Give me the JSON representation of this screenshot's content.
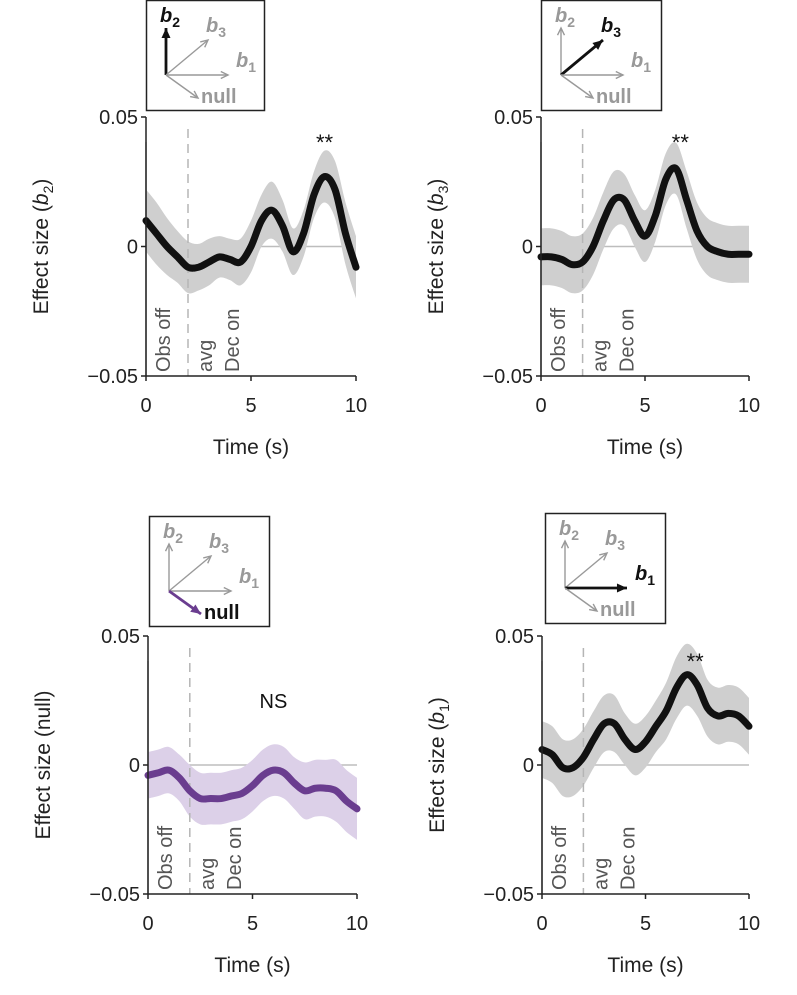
{
  "colors": {
    "black": "#111111",
    "purple": "#6a3d8f",
    "purple_band": "#dcd0e8",
    "gray_band": "#cfcfcf",
    "gray_text": "#999999",
    "marker": "#b5b5b5",
    "axis": "#222222"
  },
  "chart_data": [
    {
      "type": "line",
      "ylabel_main": "Effect size (",
      "ylabel_var": "b",
      "ylabel_sub": "2",
      "ylabel_end": ")",
      "xlabel": "Time (s)",
      "x_ticks": [
        "0",
        "5",
        "10"
      ],
      "y_ticks": [
        "0.05",
        "0",
        "−0.05"
      ],
      "xlim": [
        0,
        10
      ],
      "ylim": [
        -0.05,
        0.05
      ],
      "significance": "**",
      "significance_x": 8.5,
      "event_labels": [
        "Obs off",
        "avg",
        "Dec on"
      ],
      "event_times": [
        2
      ],
      "series": [
        {
          "name": "b2",
          "color_key": "black",
          "band_key": "gray_band",
          "x": [
            0,
            0.5,
            1,
            1.5,
            2,
            2.5,
            3,
            3.5,
            4,
            4.5,
            5,
            5.5,
            6,
            6.5,
            7,
            7.5,
            8,
            8.5,
            9,
            9.5,
            10
          ],
          "y": [
            0.01,
            0.005,
            0.0,
            -0.004,
            -0.008,
            -0.008,
            -0.006,
            -0.004,
            -0.005,
            -0.006,
            0.0,
            0.01,
            0.014,
            0.008,
            -0.002,
            0.005,
            0.02,
            0.027,
            0.022,
            0.005,
            -0.008
          ],
          "band": [
            0.012,
            0.012,
            0.011,
            0.01,
            0.01,
            0.009,
            0.009,
            0.008,
            0.008,
            0.009,
            0.01,
            0.01,
            0.011,
            0.01,
            0.009,
            0.009,
            0.009,
            0.01,
            0.011,
            0.012,
            0.012
          ]
        }
      ],
      "inset": {
        "labels": [
          {
            "main": "b",
            "sub": "2",
            "color_key": "black",
            "bold": true
          },
          {
            "main": "b",
            "sub": "3",
            "color_key": "gray_text",
            "bold": true
          },
          {
            "main": "b",
            "sub": "1",
            "color_key": "gray_text",
            "bold": true
          },
          {
            "main": "null",
            "sub": "",
            "color_key": "gray_text",
            "bold": true
          }
        ],
        "highlight": "b2"
      }
    },
    {
      "type": "line",
      "ylabel_main": "Effect size (",
      "ylabel_var": "b",
      "ylabel_sub": "3",
      "ylabel_end": ")",
      "xlabel": "Time (s)",
      "x_ticks": [
        "0",
        "5",
        "10"
      ],
      "y_ticks": [
        "0.05",
        "0",
        "−0.05"
      ],
      "xlim": [
        0,
        10
      ],
      "ylim": [
        -0.05,
        0.05
      ],
      "significance": "**",
      "significance_x": 6.7,
      "event_labels": [
        "Obs off",
        "avg",
        "Dec on"
      ],
      "event_times": [
        2
      ],
      "series": [
        {
          "name": "b3",
          "color_key": "black",
          "band_key": "gray_band",
          "x": [
            0,
            0.5,
            1,
            1.5,
            2,
            2.5,
            3,
            3.5,
            4,
            4.5,
            5,
            5.5,
            6,
            6.5,
            7,
            7.5,
            8,
            8.5,
            9,
            9.5,
            10
          ],
          "y": [
            -0.004,
            -0.004,
            -0.005,
            -0.007,
            -0.006,
            0.0,
            0.01,
            0.018,
            0.018,
            0.01,
            0.004,
            0.012,
            0.026,
            0.03,
            0.018,
            0.006,
            0.0,
            -0.002,
            -0.003,
            -0.003,
            -0.003
          ],
          "band": [
            0.011,
            0.011,
            0.011,
            0.011,
            0.011,
            0.011,
            0.011,
            0.011,
            0.01,
            0.01,
            0.01,
            0.01,
            0.01,
            0.01,
            0.011,
            0.011,
            0.011,
            0.011,
            0.011,
            0.011,
            0.011
          ]
        }
      ],
      "inset": {
        "labels": [
          {
            "main": "b",
            "sub": "2",
            "color_key": "gray_text",
            "bold": true
          },
          {
            "main": "b",
            "sub": "3",
            "color_key": "black",
            "bold": true
          },
          {
            "main": "b",
            "sub": "1",
            "color_key": "gray_text",
            "bold": true
          },
          {
            "main": "null",
            "sub": "",
            "color_key": "gray_text",
            "bold": true
          }
        ],
        "highlight": "b3"
      }
    },
    {
      "type": "line",
      "ylabel_main": "Effect size (null)",
      "ylabel_var": "",
      "ylabel_sub": "",
      "ylabel_end": "",
      "xlabel": "Time (s)",
      "x_ticks": [
        "0",
        "5",
        "10"
      ],
      "y_ticks": [
        "0.05",
        "0",
        "−0.05"
      ],
      "xlim": [
        0,
        10
      ],
      "ylim": [
        -0.05,
        0.05
      ],
      "significance": "NS",
      "significance_x": 6.0,
      "event_labels": [
        "Obs off",
        "avg",
        "Dec on"
      ],
      "event_times": [
        2
      ],
      "series": [
        {
          "name": "null",
          "color_key": "purple",
          "band_key": "purple_band",
          "x": [
            0,
            0.5,
            1,
            1.5,
            2,
            2.5,
            3,
            3.5,
            4,
            4.5,
            5,
            5.5,
            6,
            6.5,
            7,
            7.5,
            8,
            8.5,
            9,
            9.5,
            10
          ],
          "y": [
            -0.004,
            -0.003,
            -0.002,
            -0.005,
            -0.01,
            -0.013,
            -0.013,
            -0.013,
            -0.012,
            -0.011,
            -0.008,
            -0.004,
            -0.002,
            -0.003,
            -0.007,
            -0.01,
            -0.009,
            -0.009,
            -0.01,
            -0.014,
            -0.017
          ],
          "band": [
            0.009,
            0.009,
            0.009,
            0.009,
            0.01,
            0.01,
            0.01,
            0.01,
            0.01,
            0.01,
            0.01,
            0.01,
            0.01,
            0.01,
            0.01,
            0.011,
            0.011,
            0.011,
            0.012,
            0.012,
            0.012
          ]
        }
      ],
      "inset": {
        "labels": [
          {
            "main": "b",
            "sub": "2",
            "color_key": "gray_text",
            "bold": true
          },
          {
            "main": "b",
            "sub": "3",
            "color_key": "gray_text",
            "bold": true
          },
          {
            "main": "b",
            "sub": "1",
            "color_key": "gray_text",
            "bold": true
          },
          {
            "main": "null",
            "sub": "",
            "color_key": "black",
            "bold": true
          }
        ],
        "highlight": "null"
      }
    },
    {
      "type": "line",
      "ylabel_main": "Effect size (",
      "ylabel_var": "b",
      "ylabel_sub": "1",
      "ylabel_end": ")",
      "xlabel": "Time (s)",
      "x_ticks": [
        "0",
        "5",
        "10"
      ],
      "y_ticks": [
        "0.05",
        "0",
        "−0.05"
      ],
      "xlim": [
        0,
        10
      ],
      "ylim": [
        -0.05,
        0.05
      ],
      "significance": "**",
      "significance_x": 7.4,
      "event_labels": [
        "Obs off",
        "avg",
        "Dec on"
      ],
      "event_times": [
        2
      ],
      "series": [
        {
          "name": "b1",
          "color_key": "black",
          "band_key": "gray_band",
          "x": [
            0,
            0.5,
            1,
            1.5,
            2,
            2.5,
            3,
            3.5,
            4,
            4.5,
            5,
            5.5,
            6,
            6.5,
            7,
            7.5,
            8,
            8.5,
            9,
            9.5,
            10
          ],
          "y": [
            0.006,
            0.004,
            -0.001,
            -0.001,
            0.003,
            0.01,
            0.016,
            0.016,
            0.01,
            0.006,
            0.009,
            0.015,
            0.021,
            0.03,
            0.035,
            0.031,
            0.022,
            0.019,
            0.02,
            0.019,
            0.015
          ],
          "band": [
            0.011,
            0.011,
            0.011,
            0.011,
            0.011,
            0.011,
            0.011,
            0.011,
            0.01,
            0.01,
            0.01,
            0.01,
            0.011,
            0.012,
            0.012,
            0.012,
            0.011,
            0.011,
            0.011,
            0.011,
            0.011
          ]
        }
      ],
      "inset": {
        "labels": [
          {
            "main": "b",
            "sub": "2",
            "color_key": "gray_text",
            "bold": true
          },
          {
            "main": "b",
            "sub": "3",
            "color_key": "gray_text",
            "bold": true
          },
          {
            "main": "b",
            "sub": "1",
            "color_key": "black",
            "bold": true
          },
          {
            "main": "null",
            "sub": "",
            "color_key": "gray_text",
            "bold": true
          }
        ],
        "highlight": "b1"
      }
    }
  ]
}
